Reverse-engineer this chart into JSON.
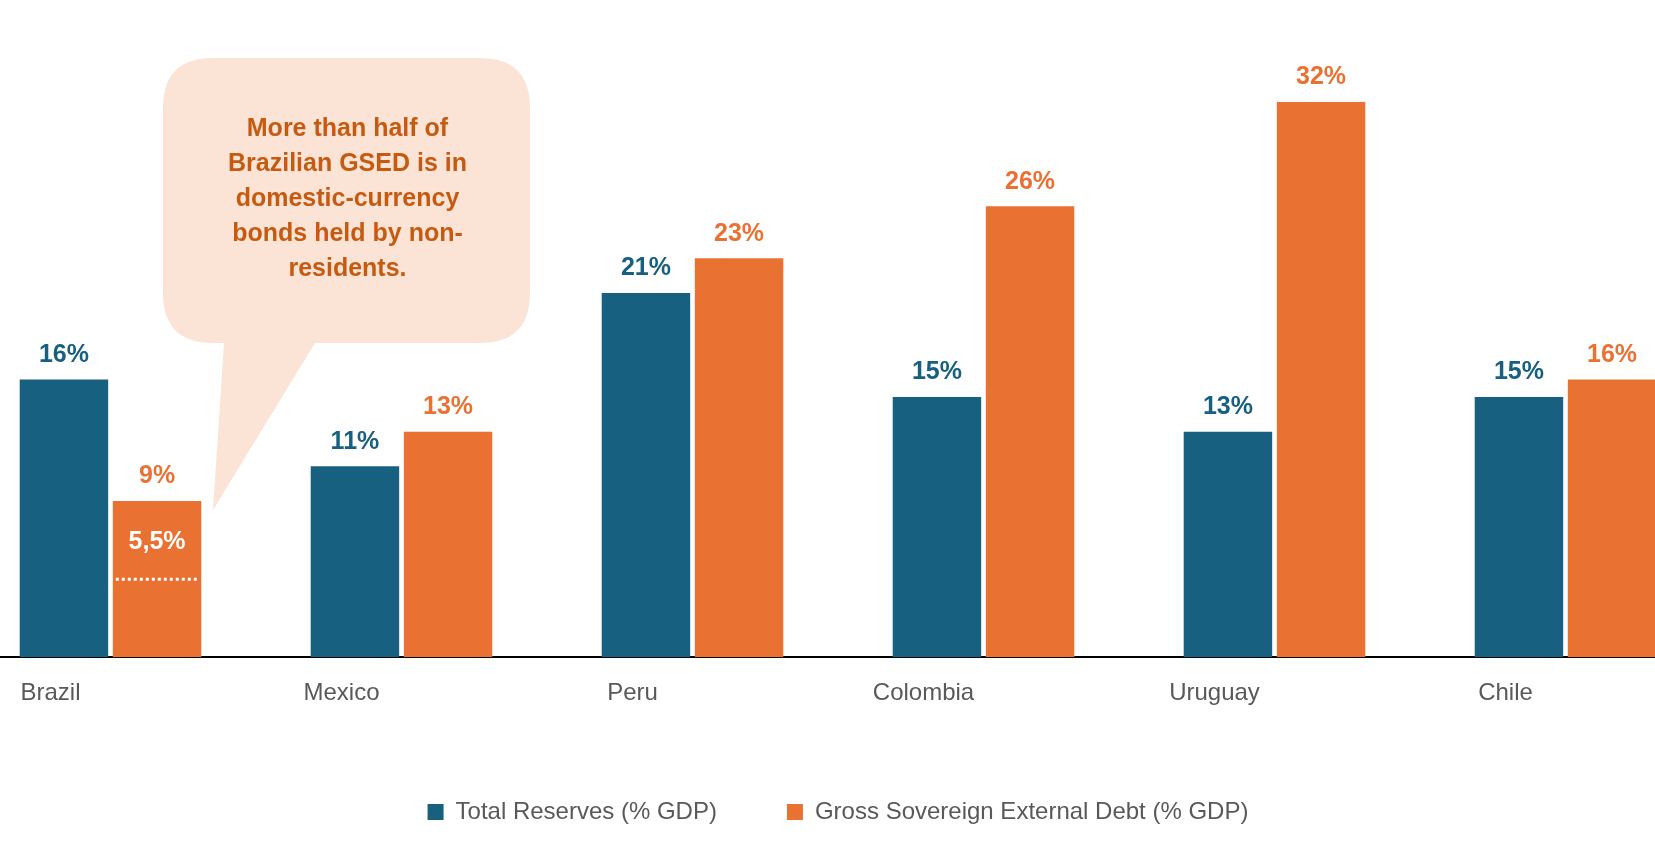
{
  "chart_data": {
    "type": "bar",
    "categories": [
      "Brazil",
      "Mexico",
      "Peru",
      "Colombia",
      "Uruguay",
      "Chile"
    ],
    "series": [
      {
        "name": "Total Reserves (% GDP)",
        "color": "#17607f",
        "values": [
          16,
          11,
          21,
          15,
          13,
          15
        ],
        "value_labels": [
          "16%",
          "11%",
          "21%",
          "15%",
          "13%",
          "15%"
        ]
      },
      {
        "name": "Gross Sovereign External Debt (% GDP)",
        "color": "#e97132",
        "values": [
          9,
          13,
          23,
          26,
          32,
          16
        ],
        "value_labels": [
          "9%",
          "13%",
          "23%",
          "26%",
          "32%",
          "16%"
        ]
      }
    ],
    "annotations": [
      "More than half of Brazilian GSED is in domestic-currency bonds held by non-residents.",
      "5,5%"
    ],
    "legend": "bottom",
    "grid": false
  }
}
